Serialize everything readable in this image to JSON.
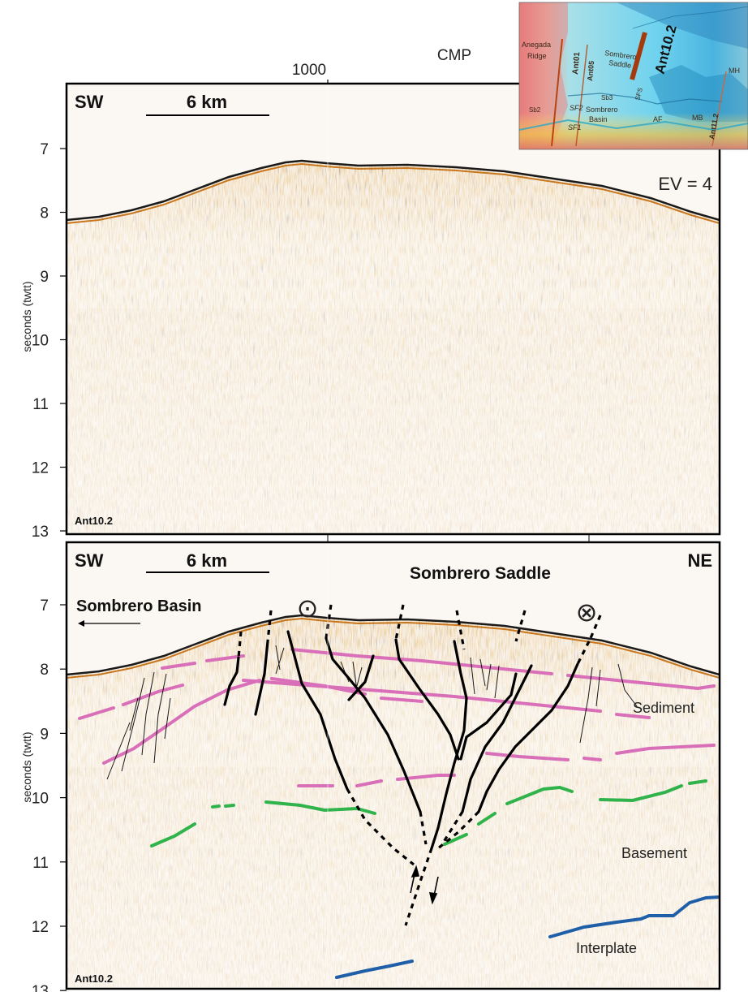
{
  "axis": {
    "ylabel": "seconds (twtt)",
    "xlabel": "CMP",
    "x_tick": "1000",
    "y_ticks": [
      "7",
      "8",
      "9",
      "10",
      "11",
      "12",
      "13"
    ]
  },
  "top_panel": {
    "dir_left": "SW",
    "scale_label": "6 km",
    "line_label": "Ant10.2",
    "ev_label": "EV = 4"
  },
  "bottom_panel": {
    "dir_left": "SW",
    "dir_right": "NE",
    "scale_label": "6 km",
    "line_label": "Ant10.2",
    "title": "Sombrero Saddle",
    "basin_label": "Sombrero Basin",
    "unit_labels": {
      "sediment": "Sediment",
      "basement": "Basement",
      "interplate": "Interplate"
    },
    "symbols": {
      "out_of_page": "⊙",
      "into_page": "⊗"
    }
  },
  "inset_map": {
    "labels": {
      "anegada_1": "Anegada",
      "anegada_2": "Ridge",
      "ant01": "Ant01",
      "ant05": "Ant05",
      "sombrero_1": "Sombrero",
      "sombrero_2": "Saddle",
      "ant102": "Ant10.2",
      "ant112": "Ant11.2",
      "mh": "MH",
      "mb": "MB",
      "sb2": "Sb2",
      "sb3": "Sb3",
      "sf2": "SF2",
      "sf1": "SF1",
      "sfs": "SFS",
      "basin_1": "Sombrero",
      "basin_2": "Basin",
      "af": "AF"
    }
  },
  "colors": {
    "sediment_horizon": "#d86fb8",
    "basement_horizon": "#2fb34a",
    "interplate_horizon": "#1f5fa8",
    "fault": "#000000",
    "seismic_orange": "#c8771f",
    "survey_line": "#b8440f"
  }
}
